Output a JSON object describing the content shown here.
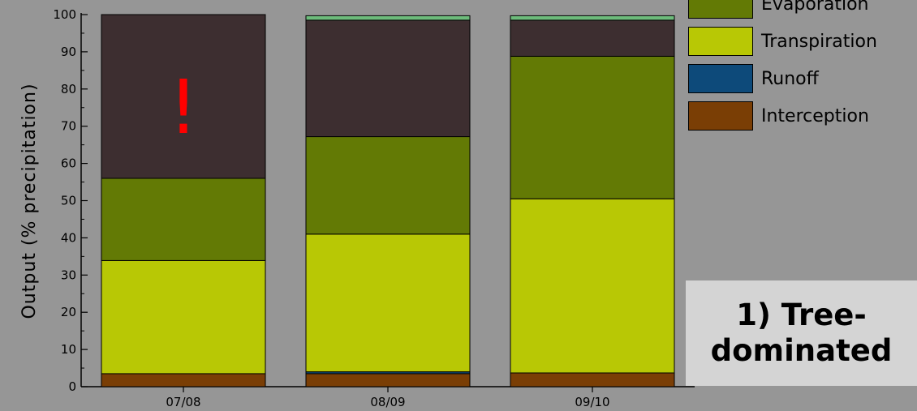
{
  "chart_data": {
    "type": "bar",
    "stacked": true,
    "title": "",
    "xlabel": "",
    "ylabel": "Output (% precipitation)",
    "ylim": [
      0,
      100
    ],
    "yticks": [
      "0",
      "10",
      "20",
      "30",
      "40",
      "50",
      "60",
      "70",
      "80",
      "90",
      "100"
    ],
    "categories": [
      "07/08",
      "08/09",
      "09/10"
    ],
    "series": [
      {
        "name": "Interception",
        "color": "#7a3e05",
        "values": [
          3.5,
          3.5,
          3.7
        ]
      },
      {
        "name": "Runoff",
        "color": "#0d4a7a",
        "values": [
          0,
          0.5,
          0
        ]
      },
      {
        "name": "Transpiration",
        "color": "#b8c805",
        "values": [
          30.4,
          37,
          46.8
        ]
      },
      {
        "name": "Evaporation",
        "color": "#637a05",
        "values": [
          22.1,
          26.2,
          38.3
        ]
      },
      {
        "name": "",
        "color": "#3d2e30",
        "values": [
          44,
          31.3,
          9.7
        ]
      },
      {
        "name": "",
        "color": "#6dbb7b",
        "values": [
          0,
          1.2,
          1.2
        ]
      }
    ],
    "annotations": [
      {
        "text": "!",
        "category": "07/08",
        "color": "#ff0000"
      }
    ],
    "legend": {
      "placement": "top-right",
      "entries": [
        {
          "label": "Evaporation",
          "color": "#637a05"
        },
        {
          "label": "Transpiration",
          "color": "#b8c805"
        },
        {
          "label": "Runoff",
          "color": "#0d4a7a"
        },
        {
          "label": "Interception",
          "color": "#7a3e05"
        }
      ]
    },
    "grid": false
  },
  "note": {
    "line1": "1) Tree-",
    "line2": "dominated"
  }
}
